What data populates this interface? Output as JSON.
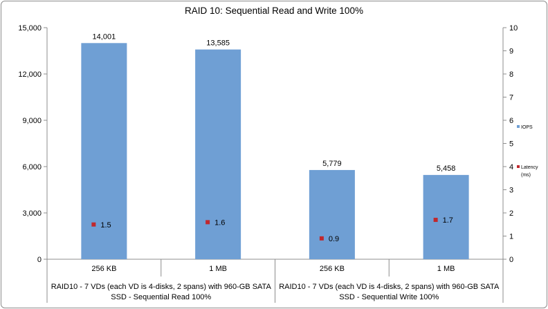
{
  "chart_data": {
    "type": "bar",
    "title": "RAID 10: Sequential Read and Write 100%",
    "categories": [
      "256 KB",
      "1 MB",
      "256 KB",
      "1 MB"
    ],
    "groups": [
      {
        "label_line1": "RAID10 - 7 VDs (each VD is 4-disks, 2 spans) with 960-GB SATA",
        "label_line2": "SSD - Sequential Read 100%"
      },
      {
        "label_line1": "RAID10 - 7 VDs (each VD is 4-disks, 2 spans) with 960-GB SATA",
        "label_line2": "SSD - Sequential Write 100%"
      }
    ],
    "series": [
      {
        "name": "IOPS",
        "type": "bar",
        "axis": "left",
        "values": [
          14001,
          13585,
          5779,
          5458
        ],
        "labels": [
          "14,001",
          "13,585",
          "5,779",
          "5,458"
        ],
        "color": "#6f9fd4"
      },
      {
        "name_line1": "Latency",
        "name_line2": "(ms)",
        "type": "scatter",
        "axis": "right",
        "values": [
          1.5,
          1.6,
          0.9,
          1.7
        ],
        "labels": [
          "1.5",
          "1.6",
          "0.9",
          "1.7"
        ],
        "color": "#c0282d"
      }
    ],
    "ylim": [
      0,
      15000
    ],
    "y_ticks": [
      "0",
      "3,000",
      "6,000",
      "9,000",
      "12,000",
      "15,000"
    ],
    "y2lim": [
      0,
      10
    ],
    "y2_ticks": [
      "0",
      "1",
      "2",
      "3",
      "4",
      "5",
      "6",
      "7",
      "8",
      "9",
      "10"
    ],
    "grid": false,
    "legend": "right"
  }
}
